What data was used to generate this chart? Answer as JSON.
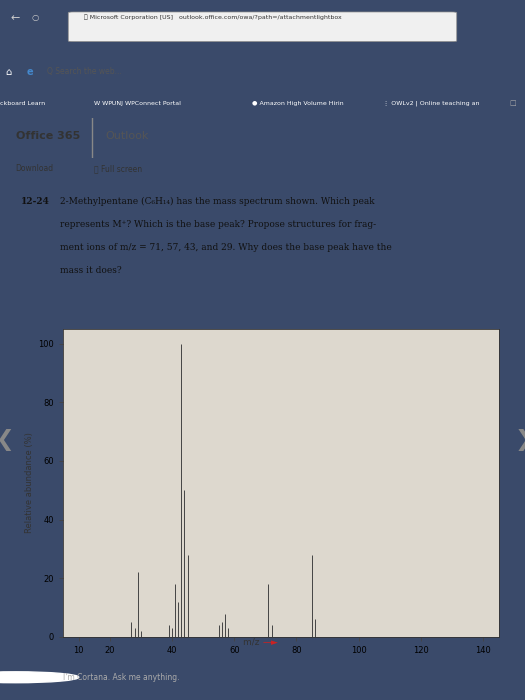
{
  "peaks": [
    {
      "mz": 27,
      "abundance": 5
    },
    {
      "mz": 28,
      "abundance": 3
    },
    {
      "mz": 29,
      "abundance": 22
    },
    {
      "mz": 30,
      "abundance": 2
    },
    {
      "mz": 39,
      "abundance": 4
    },
    {
      "mz": 40,
      "abundance": 3
    },
    {
      "mz": 41,
      "abundance": 18
    },
    {
      "mz": 42,
      "abundance": 12
    },
    {
      "mz": 43,
      "abundance": 100
    },
    {
      "mz": 44,
      "abundance": 50
    },
    {
      "mz": 45,
      "abundance": 28
    },
    {
      "mz": 55,
      "abundance": 4
    },
    {
      "mz": 56,
      "abundance": 5
    },
    {
      "mz": 57,
      "abundance": 8
    },
    {
      "mz": 58,
      "abundance": 3
    },
    {
      "mz": 71,
      "abundance": 18
    },
    {
      "mz": 72,
      "abundance": 4
    },
    {
      "mz": 85,
      "abundance": 28
    },
    {
      "mz": 86,
      "abundance": 6
    }
  ],
  "xlim": [
    5,
    145
  ],
  "ylim": [
    0,
    105
  ],
  "xticks": [
    10,
    20,
    40,
    60,
    80,
    100,
    120,
    140
  ],
  "yticks": [
    0,
    20,
    40,
    60,
    80,
    100
  ],
  "ylabel": "Relative abundance (%)",
  "bar_color": "#444444",
  "plot_bg": "#ddd8ce",
  "content_bg": "#d0cec8",
  "outer_bg": "#3a4a6a",
  "taskbar_bg": "#1a1a2a",
  "header_strip_bg": "#bbbec8",
  "office_header_bg": "#f5f5f5",
  "tab_bar_bg": "#b0b4c0",
  "url_bar_bg": "#e8e8e8",
  "white_area_bg": "#f2f0ec",
  "nav_dark": "#2a3a5a",
  "title_label": "12-24",
  "question_line1": "2-Methylpentane (C",
  "question_line1b": "6",
  "question_line1c": "H",
  "question_line1d": "14",
  "question_line1e": ") has the mass spectrum shown. Which peak",
  "question_line2": "represents M",
  "question_line2b": "+",
  "question_line2c": "? Which is the base peak? Propose structures for frag-",
  "question_line3": "ment ions of m/z = 71, 57, 43, and 29. Why does the base peak have the",
  "question_line4": "mass it does?"
}
